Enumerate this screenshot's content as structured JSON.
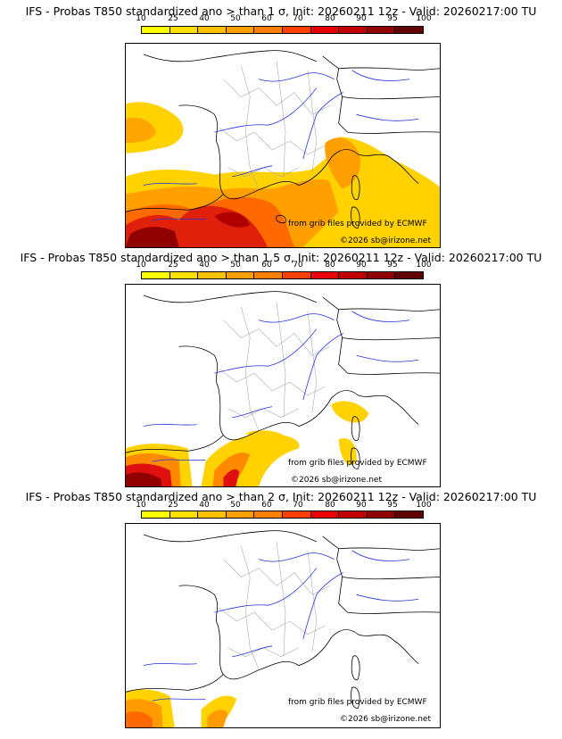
{
  "colorbar": {
    "ticks": [
      "10",
      "25",
      "40",
      "50",
      "60",
      "70",
      "80",
      "90",
      "95",
      "100"
    ],
    "colors": [
      "#ffff00",
      "#ffe000",
      "#ffc000",
      "#ff9f00",
      "#ff8000",
      "#ff4000",
      "#ea0000",
      "#c00000",
      "#900000",
      "#600000"
    ]
  },
  "panels": [
    {
      "title": "IFS - Probas T850  standardized ano > than 1 σ, Init: 20260211 12z - Valid: 20260217:00 TU",
      "threshold_sigma": "1",
      "credit_source": "from grib files provided by ECMWF",
      "credit_copyright": "©2026 sb@irizone.net"
    },
    {
      "title": "IFS - Probas T850  standardized ano > than 1.5 σ, Init: 20260211 12z - Valid: 20260217:00 TU",
      "threshold_sigma": "1.5",
      "credit_source": "from grib files provided by ECMWF",
      "credit_copyright": "©2026 sb@irizone.net"
    },
    {
      "title": "IFS - Probas T850  standardized ano > than 2 σ, Init: 20260211 12z - Valid: 20260217:00 TU",
      "threshold_sigma": "2",
      "credit_source": "from grib files provided by ECMWF",
      "credit_copyright": "©2026 sb@irizone.net"
    }
  ]
}
